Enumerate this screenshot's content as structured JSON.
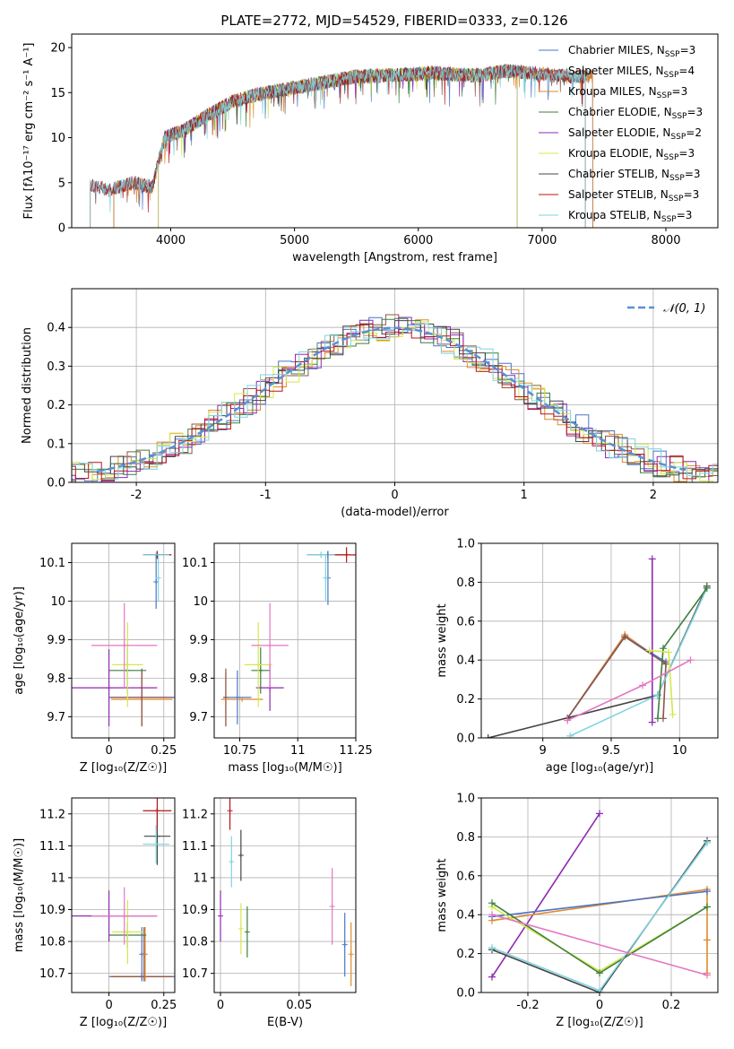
{
  "title": "PLATE=2772, MJD=54529, FIBERID=0333, z=0.126",
  "colors": {
    "Chabrier MILES": "#4a74c8",
    "Salpeter MILES": "#8c564b",
    "Kroupa MILES": "#e08a2c",
    "Chabrier ELODIE": "#3f7f3f",
    "Salpeter ELODIE": "#8e2bb0",
    "Kroupa ELODIE": "#d4e84a",
    "Chabrier STELIB": "#444444",
    "Salpeter STELIB": "#b8141a",
    "Kroupa STELIB": "#7fd3df",
    "extra_pink": "#e377c2",
    "gauss": "#5b8fd6"
  },
  "chart_data": [
    {
      "id": "spectrum",
      "type": "line",
      "title": "PLATE=2772, MJD=54529, FIBERID=0333, z=0.126",
      "xlabel": "wavelength [Angstrom, rest frame]",
      "ylabel": "Flux [fλ10⁻¹⁷ erg cm⁻² s⁻¹ A⁻¹]",
      "xlim": [
        3200,
        8420
      ],
      "ylim": [
        0,
        21.5
      ],
      "xticks": [
        4000,
        5000,
        6000,
        7000,
        8000
      ],
      "yticks": [
        0,
        5,
        10,
        15,
        20
      ],
      "legend_position": "upper-right",
      "legend": [
        {
          "model": "Chabrier MILES",
          "n": "3"
        },
        {
          "model": "Salpeter MILES",
          "n": "4"
        },
        {
          "model": "Kroupa MILES",
          "n": "3"
        },
        {
          "model": "Chabrier ELODIE",
          "n": "3"
        },
        {
          "model": "Salpeter ELODIE",
          "n": "2"
        },
        {
          "model": "Kroupa ELODIE",
          "n": "3"
        },
        {
          "model": "Chabrier STELIB",
          "n": "3"
        },
        {
          "model": "Salpeter STELIB",
          "n": "3"
        },
        {
          "model": "Kroupa STELIB",
          "n": "3"
        }
      ],
      "continuum": [
        [
          3350,
          4.8
        ],
        [
          3500,
          4.2
        ],
        [
          3700,
          5.0
        ],
        [
          3850,
          4.5
        ],
        [
          3950,
          10.0
        ],
        [
          4100,
          10.8
        ],
        [
          4300,
          12.5
        ],
        [
          4500,
          14.0
        ],
        [
          4700,
          14.8
        ],
        [
          4900,
          15.3
        ],
        [
          5100,
          15.8
        ],
        [
          5300,
          16.3
        ],
        [
          5500,
          16.8
        ],
        [
          5700,
          16.9
        ],
        [
          5900,
          17.0
        ],
        [
          6100,
          17.2
        ],
        [
          6300,
          17.0
        ],
        [
          6500,
          16.9
        ],
        [
          6700,
          17.4
        ],
        [
          6900,
          17.2
        ],
        [
          7100,
          16.9
        ],
        [
          7350,
          16.8
        ]
      ],
      "model_ranges": {
        "Chabrier MILES": [
          3540,
          7410
        ],
        "Salpeter MILES": [
          3540,
          7410
        ],
        "Kroupa MILES": [
          3540,
          7410
        ],
        "Chabrier ELODIE": [
          3900,
          6800
        ],
        "Salpeter ELODIE": [
          3900,
          6800
        ],
        "Kroupa ELODIE": [
          3900,
          6800
        ],
        "Chabrier STELIB": [
          3350,
          7350
        ],
        "Salpeter STELIB": [
          3350,
          7350
        ],
        "Kroupa STELIB": [
          3350,
          7350
        ]
      }
    },
    {
      "id": "residuals",
      "type": "line",
      "xlabel": "(data-model)/error",
      "ylabel": "Normed distribution",
      "xlim": [
        -2.5,
        2.5
      ],
      "ylim": [
        0,
        0.5
      ],
      "xticks": [
        -2,
        -1,
        0,
        1,
        2
      ],
      "yticks": [
        0.0,
        0.1,
        0.2,
        0.3,
        0.4
      ],
      "legend_position": "upper-right",
      "legend": "𝒩(0, 1)",
      "bin_width": 0.1,
      "series_note": "step histograms per model"
    },
    {
      "id": "z-age",
      "type": "scatter",
      "xlabel": "Z [log₁₀(Z/Z☉)]",
      "ylabel": "age  [log₁₀(age/yr)]",
      "xlim": [
        -0.17,
        0.3
      ],
      "ylim": [
        9.645,
        10.15
      ],
      "xticks": [
        0.0,
        0.25
      ],
      "yticks": [
        9.7,
        9.8,
        9.9,
        10.0,
        10.1
      ],
      "points": [
        {
          "model": "Chabrier MILES",
          "x": 0.15,
          "y": 9.75,
          "xerr": 0.15,
          "yerr": 0.07
        },
        {
          "model": "Kroupa MILES",
          "x": 0.15,
          "y": 9.745,
          "xerr": 0.14,
          "yerr": 0.07
        },
        {
          "model": "Salpeter MILES",
          "x": 0.15,
          "y": 9.75,
          "xerr": 0.14,
          "yerr": 0.075
        },
        {
          "model": "Chabrier ELODIE",
          "x": 0.085,
          "y": 9.82,
          "xerr": 0.085,
          "yerr": 0.06
        },
        {
          "model": "Salpeter ELODIE",
          "x": 0.0,
          "y": 9.775,
          "xerr": 0.22,
          "yerr": 0.1
        },
        {
          "model": "Kroupa ELODIE",
          "x": 0.085,
          "y": 9.835,
          "xerr": 0.07,
          "yerr": 0.11
        },
        {
          "model": "Chabrier STELIB",
          "x": 0.22,
          "y": 10.12,
          "xerr": 0.06,
          "yerr": 0.01
        },
        {
          "model": "Salpeter STELIB",
          "x": 0.22,
          "y": 10.12,
          "xerr": 0.065,
          "yerr": 0.01
        },
        {
          "model": "Kroupa STELIB",
          "x": 0.215,
          "y": 10.12,
          "xerr": 0.06,
          "yerr": 0.008
        },
        {
          "model": "extra_pink",
          "x": 0.07,
          "y": 9.885,
          "xerr": 0.15,
          "yerr": 0.11
        },
        {
          "model": "Chabrier MILES",
          "x": 0.215,
          "y": 10.05,
          "xerr": 0.0,
          "yerr": 0.07
        },
        {
          "model": "Kroupa STELIB",
          "x": 0.225,
          "y": 10.06,
          "xerr": 0.0,
          "yerr": 0.06
        }
      ]
    },
    {
      "id": "mass-age",
      "type": "scatter",
      "xlabel": "mass [log₁₀(M/M☉)]",
      "ylabel": "",
      "xlim": [
        10.64,
        11.25
      ],
      "ylim": [
        9.645,
        10.15
      ],
      "xticks": [
        10.75,
        11.0,
        11.25
      ],
      "yticks": [
        9.7,
        9.8,
        9.9,
        10.0,
        10.1
      ],
      "points": [
        {
          "model": "Chabrier MILES",
          "x": 10.74,
          "y": 9.75,
          "xerr": 0.06,
          "yerr": 0.07
        },
        {
          "model": "Kroupa MILES",
          "x": 10.69,
          "y": 9.745,
          "xerr": 0.0,
          "yerr": 0.07
        },
        {
          "model": "Salpeter MILES",
          "x": 10.69,
          "y": 9.75,
          "xerr": 0.0,
          "yerr": 0.075
        },
        {
          "model": "Kroupa MILES",
          "x": 10.76,
          "y": 9.745,
          "xerr": 0.09,
          "yerr": 0.0
        },
        {
          "model": "Chabrier ELODIE",
          "x": 10.84,
          "y": 9.82,
          "xerr": 0.04,
          "yerr": 0.06
        },
        {
          "model": "Salpeter ELODIE",
          "x": 10.88,
          "y": 9.775,
          "xerr": 0.06,
          "yerr": 0.06
        },
        {
          "model": "Kroupa ELODIE",
          "x": 10.83,
          "y": 9.835,
          "xerr": 0.06,
          "yerr": 0.11
        },
        {
          "model": "extra_pink",
          "x": 10.88,
          "y": 9.885,
          "xerr": 0.08,
          "yerr": 0.11
        },
        {
          "model": "Chabrier STELIB",
          "x": 11.13,
          "y": 10.12,
          "xerr": 0.09,
          "yerr": 0.01
        },
        {
          "model": "Salpeter STELIB",
          "x": 11.21,
          "y": 10.12,
          "xerr": 0.06,
          "yerr": 0.02
        },
        {
          "model": "Kroupa STELIB",
          "x": 11.1,
          "y": 10.12,
          "xerr": 0.06,
          "yerr": 0.008
        },
        {
          "model": "Chabrier MILES",
          "x": 11.13,
          "y": 10.06,
          "xerr": 0.0,
          "yerr": 0.07
        },
        {
          "model": "Kroupa STELIB",
          "x": 11.12,
          "y": 10.06,
          "xerr": 0.0,
          "yerr": 0.06
        }
      ]
    },
    {
      "id": "age-massweight",
      "type": "line",
      "xlabel": "age  [log₁₀(age/yr)]",
      "ylabel": "mass weight",
      "xlim": [
        8.55,
        10.28
      ],
      "ylim": [
        0.0,
        1.0
      ],
      "xticks": [
        9.0,
        9.5,
        10.0
      ],
      "yticks": [
        0.0,
        0.2,
        0.4,
        0.6,
        0.8,
        1.0
      ],
      "series": [
        {
          "model": "Kroupa MILES",
          "x": [
            9.18,
            9.6,
            9.9
          ],
          "y": [
            0.1,
            0.53,
            0.38
          ]
        },
        {
          "model": "Chabrier MILES",
          "x": [
            9.18,
            9.6,
            9.9
          ],
          "y": [
            0.1,
            0.52,
            0.39
          ]
        },
        {
          "model": "Salpeter MILES",
          "x": [
            9.18,
            9.6,
            9.9,
            9.88
          ],
          "y": [
            0.1,
            0.52,
            0.38,
            0.1
          ]
        },
        {
          "model": "Chabrier STELIB",
          "x": [
            8.6,
            9.84,
            10.2
          ],
          "y": [
            0.0,
            0.22,
            0.78
          ]
        },
        {
          "model": "Kroupa STELIB",
          "x": [
            9.2,
            9.84,
            10.2
          ],
          "y": [
            0.01,
            0.22,
            0.77
          ]
        },
        {
          "model": "Chabrier ELODIE",
          "x": [
            9.84,
            9.88,
            10.2
          ],
          "y": [
            0.1,
            0.46,
            0.77
          ]
        },
        {
          "model": "Salpeter ELODIE",
          "x": [
            9.8,
            9.8
          ],
          "y": [
            0.08,
            0.92
          ]
        },
        {
          "model": "Kroupa ELODIE",
          "x": [
            9.78,
            9.92,
            9.95
          ],
          "y": [
            0.45,
            0.44,
            0.12
          ]
        },
        {
          "model": "extra_pink",
          "x": [
            9.18,
            9.73,
            10.08
          ],
          "y": [
            0.09,
            0.27,
            0.4
          ]
        }
      ]
    },
    {
      "id": "z-mass",
      "type": "scatter",
      "xlabel": "Z [log₁₀(Z/Z☉)]",
      "ylabel": "mass [log₁₀(M/M☉)]",
      "xlim": [
        -0.17,
        0.3
      ],
      "ylim": [
        10.64,
        11.25
      ],
      "xticks": [
        0.0,
        0.25
      ],
      "yticks": [
        10.7,
        10.8,
        10.9,
        11.0,
        11.1,
        11.2
      ],
      "points": [
        {
          "model": "Chabrier MILES",
          "x": 0.15,
          "y": 10.69,
          "xerr": 0.15,
          "yerr": 0.0
        },
        {
          "model": "Kroupa MILES",
          "x": 0.15,
          "y": 10.69,
          "xerr": 0.14,
          "yerr": 0.0
        },
        {
          "model": "Salpeter MILES",
          "x": 0.15,
          "y": 10.69,
          "xerr": 0.14,
          "yerr": 0.0
        },
        {
          "model": "Chabrier MILES",
          "x": 0.15,
          "y": 10.76,
          "xerr": 0.0,
          "yerr": 0.085
        },
        {
          "model": "Salpeter MILES",
          "x": 0.16,
          "y": 10.76,
          "xerr": 0.0,
          "yerr": 0.085
        },
        {
          "model": "Kroupa MILES",
          "x": 0.165,
          "y": 10.76,
          "xerr": 0.0,
          "yerr": 0.085
        },
        {
          "model": "Chabrier ELODIE",
          "x": 0.085,
          "y": 10.82,
          "xerr": 0.085,
          "yerr": 0.04
        },
        {
          "model": "Salpeter ELODIE",
          "x": 0.0,
          "y": 10.88,
          "xerr": 0.22,
          "yerr": 0.08
        },
        {
          "model": "Kroupa ELODIE",
          "x": 0.085,
          "y": 10.83,
          "xerr": 0.07,
          "yerr": 0.1
        },
        {
          "model": "extra_pink",
          "x": 0.07,
          "y": 10.88,
          "xerr": 0.15,
          "yerr": 0.09
        },
        {
          "model": "Chabrier STELIB",
          "x": 0.22,
          "y": 11.13,
          "xerr": 0.06,
          "yerr": 0.09
        },
        {
          "model": "Salpeter STELIB",
          "x": 0.22,
          "y": 11.21,
          "xerr": 0.065,
          "yerr": 0.06
        },
        {
          "model": "Kroupa STELIB",
          "x": 0.215,
          "y": 11.105,
          "xerr": 0.06,
          "yerr": 0.06
        }
      ]
    },
    {
      "id": "ebv-mass",
      "type": "scatter",
      "xlabel": "E(B-V)",
      "ylabel": "",
      "xlim": [
        -0.004,
        0.086
      ],
      "ylim": [
        10.64,
        11.25
      ],
      "xticks": [
        0.0,
        0.05
      ],
      "yticks": [
        10.7,
        10.8,
        10.9,
        11.0,
        11.1,
        11.2
      ],
      "points": [
        {
          "model": "Salpeter ELODIE",
          "x": 0.0,
          "y": 10.88,
          "xerr": 0.0,
          "yerr": 0.08
        },
        {
          "model": "Salpeter STELIB",
          "x": 0.006,
          "y": 11.21,
          "xerr": 0.0,
          "yerr": 0.06
        },
        {
          "model": "Kroupa STELIB",
          "x": 0.007,
          "y": 11.05,
          "xerr": 0.0,
          "yerr": 0.08
        },
        {
          "model": "Chabrier STELIB",
          "x": 0.013,
          "y": 11.07,
          "xerr": 0.0,
          "yerr": 0.08
        },
        {
          "model": "Kroupa ELODIE",
          "x": 0.013,
          "y": 10.84,
          "xerr": 0.0,
          "yerr": 0.08
        },
        {
          "model": "Chabrier ELODIE",
          "x": 0.017,
          "y": 10.83,
          "xerr": 0.0,
          "yerr": 0.08
        },
        {
          "model": "extra_pink",
          "x": 0.071,
          "y": 10.91,
          "xerr": 0.0,
          "yerr": 0.12
        },
        {
          "model": "Chabrier MILES",
          "x": 0.079,
          "y": 10.79,
          "xerr": 0.0,
          "yerr": 0.1
        },
        {
          "model": "Kroupa MILES",
          "x": 0.083,
          "y": 10.76,
          "xerr": 0.0,
          "yerr": 0.1
        }
      ]
    },
    {
      "id": "z-massweight",
      "type": "line",
      "xlabel": "Z [log₁₀(Z/Z☉)]",
      "ylabel": "mass weight",
      "xlim": [
        -0.33,
        0.33
      ],
      "ylim": [
        0.0,
        1.0
      ],
      "xticks": [
        -0.2,
        0.0,
        0.2
      ],
      "yticks": [
        0.0,
        0.2,
        0.4,
        0.6,
        0.8,
        1.0
      ],
      "series": [
        {
          "model": "Salpeter ELODIE",
          "x": [
            -0.3,
            0.0
          ],
          "y": [
            0.08,
            0.92
          ]
        },
        {
          "model": "Kroupa MILES",
          "x": [
            -0.3,
            0.3,
            0.3,
            0.3
          ],
          "y": [
            0.37,
            0.53,
            0.27,
            0.1
          ]
        },
        {
          "model": "Chabrier MILES",
          "x": [
            -0.3,
            0.3
          ],
          "y": [
            0.39,
            0.52
          ]
        },
        {
          "model": "Kroupa ELODIE",
          "x": [
            -0.3,
            0.0,
            0.3
          ],
          "y": [
            0.44,
            0.11,
            0.44
          ]
        },
        {
          "model": "Chabrier ELODIE",
          "x": [
            -0.3,
            0.0,
            0.3
          ],
          "y": [
            0.46,
            0.1,
            0.44
          ]
        },
        {
          "model": "Chabrier STELIB",
          "x": [
            -0.3,
            0.0,
            0.3
          ],
          "y": [
            0.22,
            0.0,
            0.78
          ]
        },
        {
          "model": "Kroupa STELIB",
          "x": [
            -0.3,
            0.0,
            0.3
          ],
          "y": [
            0.23,
            0.01,
            0.77
          ]
        },
        {
          "model": "extra_pink",
          "x": [
            -0.3,
            0.3
          ],
          "y": [
            0.4,
            0.09
          ]
        }
      ]
    }
  ]
}
